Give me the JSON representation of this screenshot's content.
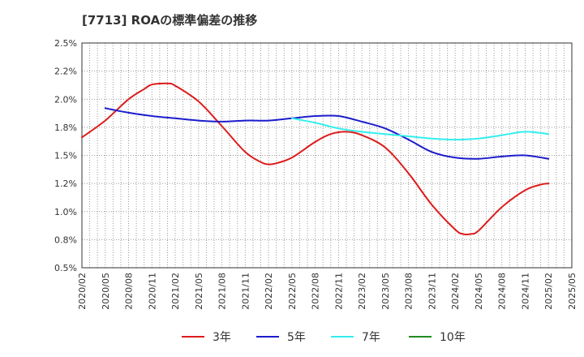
{
  "title": "[7713]  ROAの標準偏差の推移",
  "chart_data": {
    "type": "line",
    "title": "[7713]  ROAの標準偏差の推移",
    "xlabel": "",
    "ylabel": "",
    "x_ticks": [
      "2020/02",
      "2020/05",
      "2020/08",
      "2020/11",
      "2021/02",
      "2021/05",
      "2021/08",
      "2021/11",
      "2022/02",
      "2022/05",
      "2022/08",
      "2022/11",
      "2023/02",
      "2023/05",
      "2023/08",
      "2023/11",
      "2024/02",
      "2024/05",
      "2024/08",
      "2024/11",
      "2025/02",
      "2025/05"
    ],
    "y_ticks": [
      "0.5%",
      "0.8%",
      "1.0%",
      "1.2%",
      "1.5%",
      "1.8%",
      "2.0%",
      "2.2%",
      "2.5%"
    ],
    "ylim": [
      0.5,
      2.5
    ],
    "grid": true,
    "legend_position": "bottom",
    "series": [
      {
        "name": "3年",
        "color": "#dd1c1c",
        "x": [
          "2020/02",
          "2020/05",
          "2020/08",
          "2020/10",
          "2020/11",
          "2021/01",
          "2021/02",
          "2021/05",
          "2021/08",
          "2021/11",
          "2022/01",
          "2022/02",
          "2022/03",
          "2022/05",
          "2022/08",
          "2022/10",
          "2022/12",
          "2023/02",
          "2023/05",
          "2023/08",
          "2023/11",
          "2024/02",
          "2024/03",
          "2024/04",
          "2024/05",
          "2024/08",
          "2024/11",
          "2025/01",
          "2025/02"
        ],
        "values": [
          1.66,
          1.81,
          2.0,
          2.09,
          2.13,
          2.14,
          2.12,
          1.98,
          1.76,
          1.53,
          1.44,
          1.42,
          1.43,
          1.48,
          1.62,
          1.69,
          1.71,
          1.68,
          1.57,
          1.34,
          1.06,
          0.84,
          0.8,
          0.8,
          0.83,
          1.04,
          1.19,
          1.24,
          1.25
        ]
      },
      {
        "name": "5年",
        "color": "#1c1ccc",
        "x": [
          "2020/05",
          "2020/08",
          "2020/11",
          "2021/02",
          "2021/05",
          "2021/08",
          "2021/11",
          "2022/02",
          "2022/05",
          "2022/08",
          "2022/11",
          "2023/02",
          "2023/05",
          "2023/08",
          "2023/11",
          "2024/02",
          "2024/05",
          "2024/08",
          "2024/11",
          "2025/02"
        ],
        "values": [
          1.92,
          1.88,
          1.85,
          1.83,
          1.81,
          1.8,
          1.81,
          1.81,
          1.83,
          1.85,
          1.85,
          1.8,
          1.74,
          1.64,
          1.53,
          1.48,
          1.47,
          1.49,
          1.5,
          1.47
        ]
      },
      {
        "name": "7年",
        "color": "#33eeee",
        "x": [
          "2022/05",
          "2022/08",
          "2022/11",
          "2023/02",
          "2023/05",
          "2023/08",
          "2023/11",
          "2024/02",
          "2024/05",
          "2024/08",
          "2024/11",
          "2025/02"
        ],
        "values": [
          1.83,
          1.79,
          1.74,
          1.71,
          1.69,
          1.67,
          1.65,
          1.64,
          1.65,
          1.68,
          1.71,
          1.69
        ]
      },
      {
        "name": "10年",
        "color": "#228b22",
        "x": [],
        "values": []
      }
    ]
  }
}
